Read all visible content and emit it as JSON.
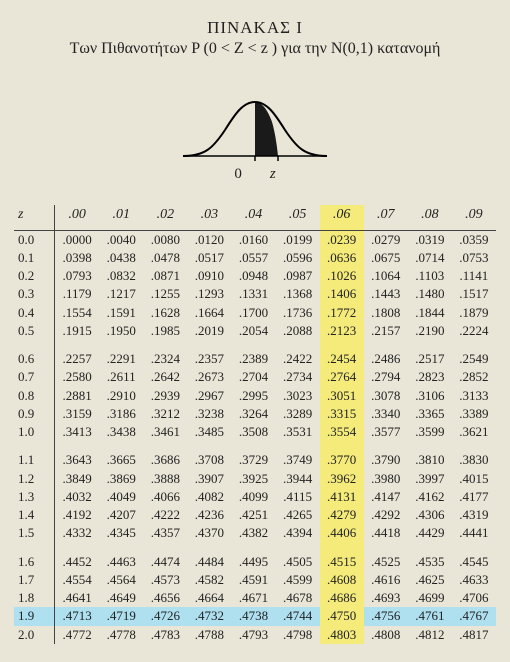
{
  "title": {
    "line1": "ΠΙΝΑΚΑΣ Ι",
    "line2": "Των Πιθανοτήτων P (0 < Z < z ) για την N(0,1) κατανομή"
  },
  "axis": {
    "zero": "0",
    "z": "z"
  },
  "table": {
    "headers": [
      "z",
      ".00",
      ".01",
      ".02",
      ".03",
      ".04",
      ".05",
      ".06",
      ".07",
      ".08",
      ".09"
    ],
    "highlight_col_index": 7,
    "highlight_row_z": "1.9",
    "groups": [
      [
        {
          "z": "0.0",
          "v": [
            ".0000",
            ".0040",
            ".0080",
            ".0120",
            ".0160",
            ".0199",
            ".0239",
            ".0279",
            ".0319",
            ".0359"
          ]
        },
        {
          "z": "0.1",
          "v": [
            ".0398",
            ".0438",
            ".0478",
            ".0517",
            ".0557",
            ".0596",
            ".0636",
            ".0675",
            ".0714",
            ".0753"
          ]
        },
        {
          "z": "0.2",
          "v": [
            ".0793",
            ".0832",
            ".0871",
            ".0910",
            ".0948",
            ".0987",
            ".1026",
            ".1064",
            ".1103",
            ".1141"
          ]
        },
        {
          "z": "0.3",
          "v": [
            ".1179",
            ".1217",
            ".1255",
            ".1293",
            ".1331",
            ".1368",
            ".1406",
            ".1443",
            ".1480",
            ".1517"
          ]
        },
        {
          "z": "0.4",
          "v": [
            ".1554",
            ".1591",
            ".1628",
            ".1664",
            ".1700",
            ".1736",
            ".1772",
            ".1808",
            ".1844",
            ".1879"
          ]
        },
        {
          "z": "0.5",
          "v": [
            ".1915",
            ".1950",
            ".1985",
            ".2019",
            ".2054",
            ".2088",
            ".2123",
            ".2157",
            ".2190",
            ".2224"
          ]
        }
      ],
      [
        {
          "z": "0.6",
          "v": [
            ".2257",
            ".2291",
            ".2324",
            ".2357",
            ".2389",
            ".2422",
            ".2454",
            ".2486",
            ".2517",
            ".2549"
          ]
        },
        {
          "z": "0.7",
          "v": [
            ".2580",
            ".2611",
            ".2642",
            ".2673",
            ".2704",
            ".2734",
            ".2764",
            ".2794",
            ".2823",
            ".2852"
          ]
        },
        {
          "z": "0.8",
          "v": [
            ".2881",
            ".2910",
            ".2939",
            ".2967",
            ".2995",
            ".3023",
            ".3051",
            ".3078",
            ".3106",
            ".3133"
          ]
        },
        {
          "z": "0.9",
          "v": [
            ".3159",
            ".3186",
            ".3212",
            ".3238",
            ".3264",
            ".3289",
            ".3315",
            ".3340",
            ".3365",
            ".3389"
          ]
        },
        {
          "z": "1.0",
          "v": [
            ".3413",
            ".3438",
            ".3461",
            ".3485",
            ".3508",
            ".3531",
            ".3554",
            ".3577",
            ".3599",
            ".3621"
          ]
        }
      ],
      [
        {
          "z": "1.1",
          "v": [
            ".3643",
            ".3665",
            ".3686",
            ".3708",
            ".3729",
            ".3749",
            ".3770",
            ".3790",
            ".3810",
            ".3830"
          ]
        },
        {
          "z": "1.2",
          "v": [
            ".3849",
            ".3869",
            ".3888",
            ".3907",
            ".3925",
            ".3944",
            ".3962",
            ".3980",
            ".3997",
            ".4015"
          ]
        },
        {
          "z": "1.3",
          "v": [
            ".4032",
            ".4049",
            ".4066",
            ".4082",
            ".4099",
            ".4115",
            ".4131",
            ".4147",
            ".4162",
            ".4177"
          ]
        },
        {
          "z": "1.4",
          "v": [
            ".4192",
            ".4207",
            ".4222",
            ".4236",
            ".4251",
            ".4265",
            ".4279",
            ".4292",
            ".4306",
            ".4319"
          ]
        },
        {
          "z": "1.5",
          "v": [
            ".4332",
            ".4345",
            ".4357",
            ".4370",
            ".4382",
            ".4394",
            ".4406",
            ".4418",
            ".4429",
            ".4441"
          ]
        }
      ],
      [
        {
          "z": "1.6",
          "v": [
            ".4452",
            ".4463",
            ".4474",
            ".4484",
            ".4495",
            ".4505",
            ".4515",
            ".4525",
            ".4535",
            ".4545"
          ]
        },
        {
          "z": "1.7",
          "v": [
            ".4554",
            ".4564",
            ".4573",
            ".4582",
            ".4591",
            ".4599",
            ".4608",
            ".4616",
            ".4625",
            ".4633"
          ]
        },
        {
          "z": "1.8",
          "v": [
            ".4641",
            ".4649",
            ".4656",
            ".4664",
            ".4671",
            ".4678",
            ".4686",
            ".4693",
            ".4699",
            ".4706"
          ]
        },
        {
          "z": "1.9",
          "v": [
            ".4713",
            ".4719",
            ".4726",
            ".4732",
            ".4738",
            ".4744",
            ".4750",
            ".4756",
            ".4761",
            ".4767"
          ]
        },
        {
          "z": "2.0",
          "v": [
            ".4772",
            ".4778",
            ".4783",
            ".4788",
            ".4793",
            ".4798",
            ".4803",
            ".4808",
            ".4812",
            ".4817"
          ]
        }
      ]
    ]
  },
  "style": {
    "background": "#e9e6d8",
    "text_color": "#222",
    "col_highlight": "#f4eb7b",
    "row_highlight": "#aee0f0",
    "curve_stroke": "#000000",
    "curve_fill": "#1a1a1a"
  }
}
